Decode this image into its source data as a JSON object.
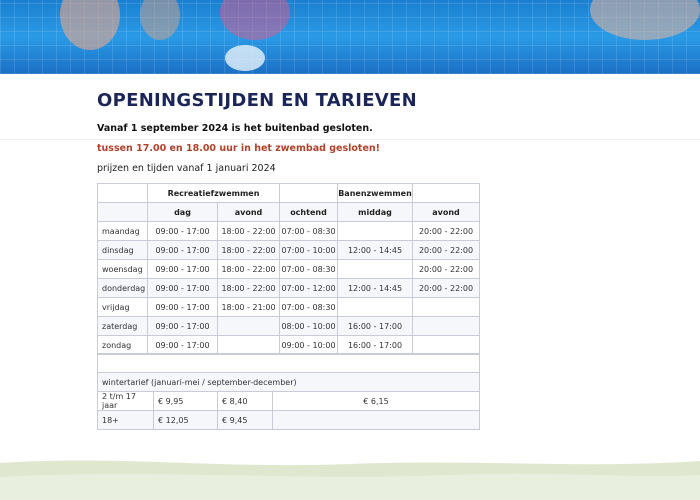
{
  "page": {
    "title": "OPENINGSTIJDEN EN TARIEVEN",
    "notice_1": "Vanaf 1 september 2024 is het buitenbad gesloten.",
    "notice_2": "tussen 17.00 en 18.00 uur in het zwembad gesloten!",
    "intro": "prijzen en tijden vanaf 1 januari 2024"
  },
  "schedule": {
    "groups": [
      "Recreatiefzwemmen",
      "Banenzwemmen"
    ],
    "columns": [
      "dag",
      "avond",
      "ochtend",
      "middag",
      "avond"
    ],
    "rows": [
      {
        "day": "maandag",
        "cells": [
          "09:00 - 17:00",
          "18:00 - 22:00",
          "07:00 - 08:30",
          "",
          "20:00 - 22:00"
        ]
      },
      {
        "day": "dinsdag",
        "cells": [
          "09:00 - 17:00",
          "18:00 - 22:00",
          "07:00 - 10:00",
          "12:00 - 14:45",
          "20:00 - 22:00"
        ]
      },
      {
        "day": "woensdag",
        "cells": [
          "09:00 - 17:00",
          "18:00 - 22:00",
          "07:00 - 08:30",
          "",
          "20:00 - 22:00"
        ]
      },
      {
        "day": "donderdag",
        "cells": [
          "09:00 - 17:00",
          "18:00 - 22:00",
          "07:00 - 12:00",
          "12:00 - 14:45",
          "20:00 - 22:00"
        ]
      },
      {
        "day": "vrijdag",
        "cells": [
          "09:00 - 17:00",
          "18:00 - 21:00",
          "07:00 - 08:30",
          "",
          ""
        ]
      },
      {
        "day": "zaterdag",
        "cells": [
          "09:00 - 17:00",
          "",
          "08:00 - 10:00",
          "16:00 - 17:00",
          ""
        ]
      },
      {
        "day": "zondag",
        "cells": [
          "09:00 - 17:00",
          "",
          "09:00 - 10:00",
          "16:00 - 17:00",
          ""
        ]
      }
    ]
  },
  "tariffs": {
    "heading": "wintertarief (januari-mei / september-december)",
    "rows": [
      {
        "label": "2 t/m 17 jaar",
        "cells": [
          "€ 9,95",
          "€ 8,40",
          "€ 6,15"
        ]
      },
      {
        "label": "18+",
        "cells": [
          "€ 12,05",
          "€ 9,45",
          ""
        ]
      }
    ]
  },
  "colors": {
    "title": "#1c2557",
    "warning": "#b0422c",
    "border": "#c8cbd8",
    "footer_wave": "#dfe8cf"
  }
}
